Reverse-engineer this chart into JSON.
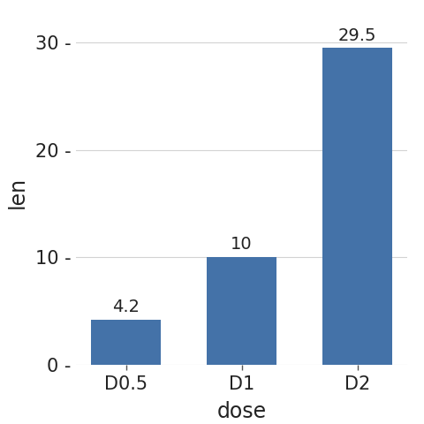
{
  "categories": [
    "D0.5",
    "D1",
    "D2"
  ],
  "values": [
    4.2,
    10,
    29.5
  ],
  "bar_labels": [
    "4.2",
    "10",
    "29.5"
  ],
  "bar_color": "#4472a8",
  "xlabel": "dose",
  "ylabel": "len",
  "ylim": [
    0,
    32
  ],
  "yticks": [
    0,
    10,
    20,
    30
  ],
  "ytick_labels": [
    "0 -",
    "10 -",
    "20 -",
    "30 -"
  ],
  "background_color": "#ffffff",
  "panel_background": "#ffffff",
  "grid_color": "#d3d3d3",
  "axis_label_fontsize": 17,
  "tick_label_fontsize": 15,
  "bar_label_fontsize": 14,
  "bar_width": 0.6
}
